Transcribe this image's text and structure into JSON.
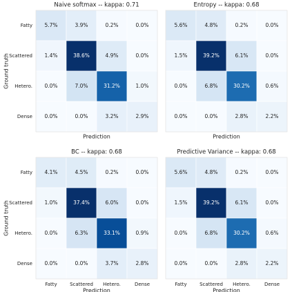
{
  "chart_data": [
    {
      "type": "heatmap",
      "title": "Naive softmax -- kappa: 0.71",
      "x_label": "Prediction",
      "y_label": "Ground truth",
      "colormap": "Blues",
      "y_categories": [
        "Fatty",
        "Scattered",
        "Hetero.",
        "Dense"
      ],
      "values": [
        [
          5.7,
          3.9,
          0.2,
          0.0
        ],
        [
          1.4,
          38.6,
          4.9,
          0.0
        ],
        [
          0.0,
          7.0,
          31.2,
          1.0
        ],
        [
          0.0,
          0.0,
          3.2,
          2.9
        ]
      ],
      "value_labels": [
        [
          "5.7%",
          "3.9%",
          "0.2%",
          "0.0%"
        ],
        [
          "1.4%",
          "38.6%",
          "4.9%",
          "0.0%"
        ],
        [
          "0.0%",
          "7.0%",
          "31.2%",
          "1.0%"
        ],
        [
          "0.0%",
          "0.0%",
          "3.2%",
          "2.9%"
        ]
      ]
    },
    {
      "type": "heatmap",
      "title": "Entropy -- kappa: 0.68",
      "x_label": "Prediction",
      "colormap": "Blues",
      "values": [
        [
          5.6,
          4.8,
          0.2,
          0.0
        ],
        [
          1.5,
          39.2,
          6.1,
          0.0
        ],
        [
          0.0,
          6.8,
          30.2,
          0.6
        ],
        [
          0.0,
          0.0,
          2.8,
          2.2
        ]
      ],
      "value_labels": [
        [
          "5.6%",
          "4.8%",
          "0.2%",
          "0.0%"
        ],
        [
          "1.5%",
          "39.2%",
          "6.1%",
          "0.0%"
        ],
        [
          "0.0%",
          "6.8%",
          "30.2%",
          "0.6%"
        ],
        [
          "0.0%",
          "0.0%",
          "2.8%",
          "2.2%"
        ]
      ]
    },
    {
      "type": "heatmap",
      "title": "BC -- kappa: 0.68",
      "x_label": "Prediction",
      "y_label": "Ground truth",
      "colormap": "Blues",
      "x_categories": [
        "Fatty",
        "Scattered",
        "Hetero.",
        "Dense"
      ],
      "y_categories": [
        "Fatty",
        "Scattered",
        "Hetero.",
        "Dense"
      ],
      "values": [
        [
          4.1,
          4.5,
          0.2,
          0.0
        ],
        [
          1.0,
          37.4,
          6.0,
          0.0
        ],
        [
          0.0,
          6.3,
          33.1,
          0.9
        ],
        [
          0.0,
          0.0,
          3.7,
          2.8
        ]
      ],
      "value_labels": [
        [
          "4.1%",
          "4.5%",
          "0.2%",
          "0.0%"
        ],
        [
          "1.0%",
          "37.4%",
          "6.0%",
          "0.0%"
        ],
        [
          "0.0%",
          "6.3%",
          "33.1%",
          "0.9%"
        ],
        [
          "0.0%",
          "0.0%",
          "3.7%",
          "2.8%"
        ]
      ]
    },
    {
      "type": "heatmap",
      "title": "Predictive Variance -- kappa: 0.68",
      "x_label": "Prediction",
      "colormap": "Blues",
      "x_categories": [
        "Fatty",
        "Scattered",
        "Hetero.",
        "Dense"
      ],
      "values": [
        [
          5.6,
          4.8,
          0.2,
          0.0
        ],
        [
          1.5,
          39.2,
          6.1,
          0.0
        ],
        [
          0.0,
          6.8,
          30.2,
          0.6
        ],
        [
          0.0,
          0.0,
          2.8,
          2.2
        ]
      ],
      "value_labels": [
        [
          "5.6%",
          "4.8%",
          "0.2%",
          "0.0%"
        ],
        [
          "1.5%",
          "39.2%",
          "6.1%",
          "0.0%"
        ],
        [
          "0.0%",
          "6.8%",
          "30.2%",
          "0.6%"
        ],
        [
          "0.0%",
          "0.0%",
          "2.8%",
          "2.2%"
        ]
      ]
    }
  ]
}
